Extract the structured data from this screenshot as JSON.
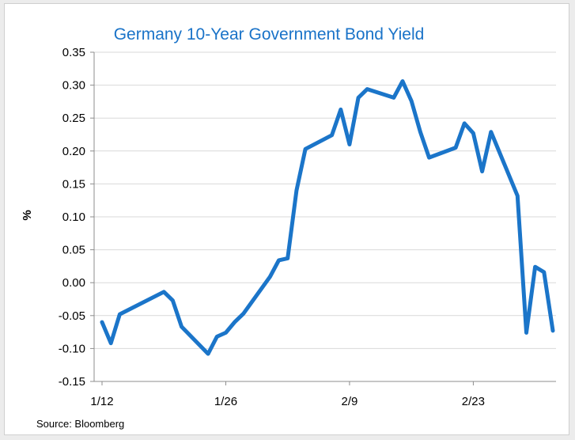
{
  "chart_data": {
    "type": "line",
    "title": "Germany 10-Year Government Bond Yield",
    "ylabel": "%",
    "xlabel": "",
    "source": "Source: Bloomberg",
    "ylim": [
      -0.15,
      0.35
    ],
    "yticks": [
      -0.15,
      -0.1,
      -0.05,
      0.0,
      0.05,
      0.1,
      0.15,
      0.2,
      0.25,
      0.3,
      0.35
    ],
    "ytick_labels": [
      "-0.15",
      "-0.10",
      "-0.05",
      "0.00",
      "0.05",
      "0.10",
      "0.15",
      "0.20",
      "0.25",
      "0.30",
      "0.35"
    ],
    "xlim": [
      "1/12",
      "3/3"
    ],
    "xticks": [
      "1/12",
      "1/26",
      "2/9",
      "2/23"
    ],
    "grid": "horizontal",
    "line_color": "#1b75c9",
    "series": [
      {
        "values": [
          {
            "x": "1/12",
            "y": -0.06
          },
          {
            "x": "1/13",
            "y": -0.092
          },
          {
            "x": "1/14",
            "y": -0.048
          },
          {
            "x": "1/19",
            "y": -0.014
          },
          {
            "x": "1/20",
            "y": -0.027
          },
          {
            "x": "1/21",
            "y": -0.067
          },
          {
            "x": "1/24",
            "y": -0.108
          },
          {
            "x": "1/25",
            "y": -0.082
          },
          {
            "x": "1/26",
            "y": -0.076
          },
          {
            "x": "1/27",
            "y": -0.06
          },
          {
            "x": "1/28",
            "y": -0.047
          },
          {
            "x": "1/31",
            "y": 0.009
          },
          {
            "x": "2/1",
            "y": 0.034
          },
          {
            "x": "2/2",
            "y": 0.037
          },
          {
            "x": "2/3",
            "y": 0.14
          },
          {
            "x": "2/4",
            "y": 0.203
          },
          {
            "x": "2/7",
            "y": 0.224
          },
          {
            "x": "2/8",
            "y": 0.263
          },
          {
            "x": "2/9",
            "y": 0.21
          },
          {
            "x": "2/10",
            "y": 0.281
          },
          {
            "x": "2/11",
            "y": 0.294
          },
          {
            "x": "2/14",
            "y": 0.281
          },
          {
            "x": "2/15",
            "y": 0.306
          },
          {
            "x": "2/16",
            "y": 0.276
          },
          {
            "x": "2/17",
            "y": 0.229
          },
          {
            "x": "2/18",
            "y": 0.19
          },
          {
            "x": "2/21",
            "y": 0.205
          },
          {
            "x": "2/22",
            "y": 0.242
          },
          {
            "x": "2/23",
            "y": 0.227
          },
          {
            "x": "2/24",
            "y": 0.169
          },
          {
            "x": "2/25",
            "y": 0.229
          },
          {
            "x": "2/28",
            "y": 0.132
          },
          {
            "x": "3/1",
            "y": -0.076
          },
          {
            "x": "3/2",
            "y": 0.024
          },
          {
            "x": "3/3",
            "y": 0.016
          },
          {
            "x": "3/4",
            "y": -0.073
          }
        ]
      }
    ]
  }
}
